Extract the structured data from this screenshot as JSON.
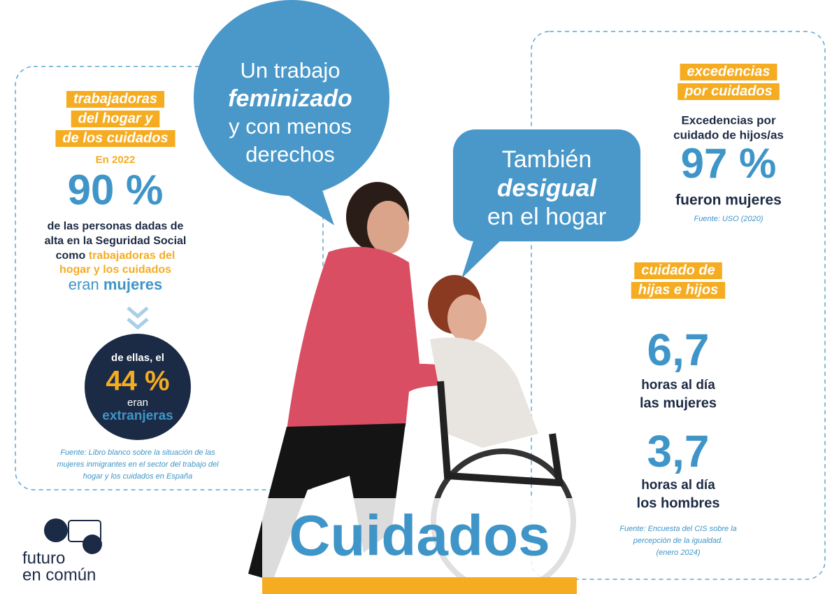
{
  "left_panel": {
    "heading": [
      "trabajadoras",
      "del hogar y",
      "de los cuidados"
    ],
    "year": "En 2022",
    "stat": "90 %",
    "description": [
      [
        "de las personas dadas de"
      ],
      [
        "alta en la Seguridad Social"
      ],
      [
        "como ",
        "trabajadoras del"
      ],
      [
        "hogar y los cuidados"
      ],
      [
        "eran ",
        "mujeres"
      ]
    ],
    "circle": [
      "de ellas, el",
      "44 %",
      "eran",
      "extranjeras"
    ],
    "source": [
      "Fuente: Libro blanco sobre la situación de las",
      "mujeres inmigrantes en el sector del trabajo del",
      "hogar y los cuidados en España"
    ]
  },
  "bubbles": [
    [
      "Un trabajo",
      "feminizado",
      "y con menos",
      "derechos"
    ],
    [
      "También",
      "desigual",
      "en el hogar"
    ]
  ],
  "right_panel": {
    "heading_1": [
      "excedencias",
      "por cuidados"
    ],
    "text_1": [
      "Excedencias por",
      "cuidado de hijos/as"
    ],
    "stat_1": "97 %",
    "stat_1_label": "fueron mujeres",
    "source_1": "Fuente: USO (2020)",
    "heading_2": [
      "cuidado de",
      "hijas e hijos"
    ],
    "women": {
      "stat": "6,7",
      "unit": "horas al día",
      "label": "las mujeres"
    },
    "men": {
      "stat": "3,7",
      "unit": "horas al día",
      "label": "los hombres"
    },
    "source_2": [
      "Fuente: Encuesta del CIS sobre la",
      "percepción de la igualdad.",
      "(enero 2024)"
    ]
  },
  "title": "Cuidados",
  "logo": [
    "futuro",
    "en común"
  ]
}
